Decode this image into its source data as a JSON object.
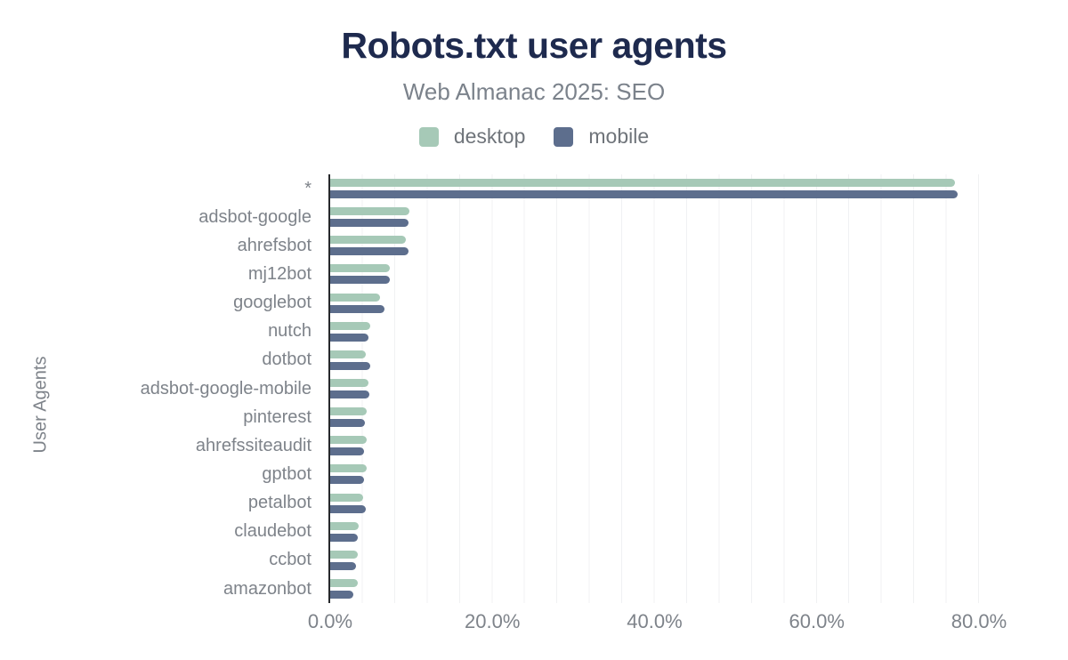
{
  "title": "Robots.txt user agents",
  "subtitle": "Web Almanac 2025: SEO",
  "y_axis_label": "User Agents",
  "legend": [
    {
      "label": "desktop",
      "color": "#a6c9b7"
    },
    {
      "label": "mobile",
      "color": "#5d6e8d"
    }
  ],
  "colors": {
    "desktop": "#a6c9b7",
    "mobile": "#5d6e8d",
    "title": "#1e2a4e",
    "axis_line": "#26282b",
    "gridline": "#f0f1f3",
    "text_muted": "#7e838a"
  },
  "chart_data": {
    "type": "bar",
    "orientation": "horizontal",
    "title": "Robots.txt user agents",
    "subtitle": "Web Almanac 2025: SEO",
    "xlabel": "",
    "ylabel": "User Agents",
    "categories": [
      "*",
      "adsbot-google",
      "ahrefsbot",
      "mj12bot",
      "googlebot",
      "nutch",
      "dotbot",
      "adsbot-google-mobile",
      "pinterest",
      "ahrefssiteaudit",
      "gptbot",
      "petalbot",
      "claudebot",
      "ccbot",
      "amazonbot"
    ],
    "series": [
      {
        "name": "desktop",
        "values": [
          77.0,
          9.8,
          9.3,
          7.4,
          6.1,
          4.9,
          4.4,
          4.7,
          4.5,
          4.5,
          4.5,
          4.1,
          3.5,
          3.4,
          3.4
        ]
      },
      {
        "name": "mobile",
        "values": [
          77.4,
          9.6,
          9.7,
          7.3,
          6.7,
          4.7,
          4.9,
          4.8,
          4.3,
          4.2,
          4.2,
          4.4,
          3.4,
          3.2,
          2.9
        ]
      }
    ],
    "value_unit": "%",
    "xlim": [
      0,
      80
    ],
    "x_ticks": [
      "0.0%",
      "20.0%",
      "40.0%",
      "60.0%",
      "80.0%"
    ],
    "x_tick_values": [
      0,
      20,
      40,
      60,
      80
    ],
    "grid": "vertical minor gridlines every 4%",
    "legend_position": "top"
  }
}
